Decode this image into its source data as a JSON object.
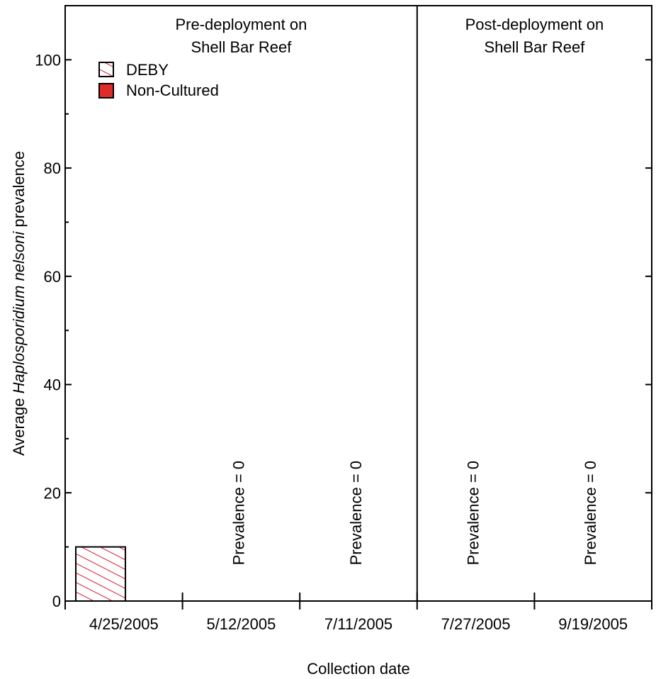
{
  "chart_data": {
    "type": "bar",
    "xlabel": "Collection date",
    "ylabel_prefix": "Average ",
    "ylabel_italic": "Haplosporidium nelsoni",
    "ylabel_suffix": " prevalence",
    "ylim": [
      0,
      110
    ],
    "yticks": [
      0,
      20,
      40,
      60,
      80,
      100
    ],
    "categories": [
      "4/25/2005",
      "5/12/2005",
      "7/11/2005",
      "7/27/2005",
      "9/19/2005"
    ],
    "series": [
      {
        "name": "DEBY",
        "values": [
          10,
          0,
          0,
          0,
          0
        ],
        "color": "#ffffff",
        "hatch_color": "#d7192a"
      },
      {
        "name": "Non-Cultured",
        "values": [
          null,
          null,
          null,
          null,
          null
        ],
        "color": "#e02b2b"
      }
    ],
    "zero_annotations": [
      {
        "category_index": 1,
        "text": "Prevalence = 0"
      },
      {
        "category_index": 2,
        "text": "Prevalence = 0"
      },
      {
        "category_index": 3,
        "text": "Prevalence = 0"
      },
      {
        "category_index": 4,
        "text": "Prevalence = 0"
      }
    ],
    "panels": [
      {
        "line1": "Pre-deployment on",
        "line2": "Shell Bar Reef",
        "from_index": 0,
        "to_index": 2
      },
      {
        "line1": "Post-deployment on",
        "line2": "Shell Bar Reef",
        "from_index": 3,
        "to_index": 4
      }
    ],
    "legend_position": "top-left",
    "grid": false
  }
}
